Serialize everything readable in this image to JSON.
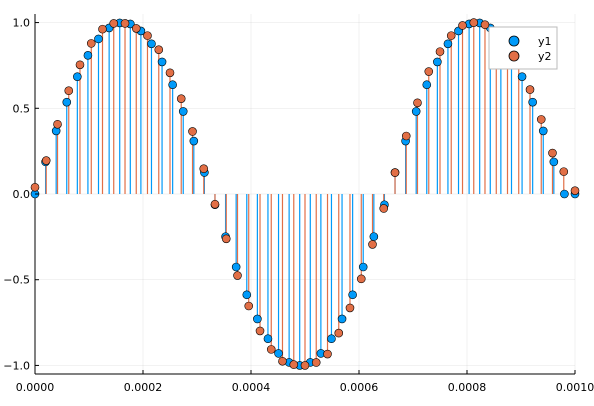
{
  "chart_data": {
    "type": "scatter",
    "title": "",
    "xlabel": "",
    "ylabel": "",
    "xlim": [
      0,
      0.001
    ],
    "ylim": [
      -1.05,
      1.05
    ],
    "grid": true,
    "legend_position": "top-right",
    "x_ticks": [
      {
        "value": 0,
        "label": "0.0000"
      },
      {
        "value": 0.0002,
        "label": "0.0002"
      },
      {
        "value": 0.0004,
        "label": "0.0004"
      },
      {
        "value": 0.0006,
        "label": "0.0006"
      },
      {
        "value": 0.0008,
        "label": "0.0008"
      },
      {
        "value": 0.001,
        "label": "0.0010"
      }
    ],
    "y_ticks": [
      {
        "value": -1.0,
        "label": "−1.0"
      },
      {
        "value": -0.5,
        "label": "−0.5"
      },
      {
        "value": 0.0,
        "label": "0.0"
      },
      {
        "value": 0.5,
        "label": "0.5"
      },
      {
        "value": 1.0,
        "label": "1.0"
      }
    ],
    "series": [
      {
        "name": "y1",
        "color": "#009af9",
        "x": [
          0,
          1.96e-05,
          3.92e-05,
          5.88e-05,
          7.84e-05,
          9.8e-05,
          0.0001176,
          0.0001373,
          0.0001569,
          0.0001765,
          0.0001961,
          0.0002157,
          0.0002353,
          0.0002549,
          0.0002745,
          0.0002941,
          0.0003137,
          0.0003333,
          0.0003529,
          0.0003725,
          0.0003922,
          0.0004118,
          0.0004314,
          0.000451,
          0.0004706,
          0.0004902,
          0.0005098,
          0.0005294,
          0.000549,
          0.0005686,
          0.0005882,
          0.0006078,
          0.0006275,
          0.0006471,
          0.0006667,
          0.0006863,
          0.0007059,
          0.0007255,
          0.0007451,
          0.0007647,
          0.0007843,
          0.0008039,
          0.0008235,
          0.0008431,
          0.0008627,
          0.0008824,
          0.000902,
          0.0009216,
          0.0009412,
          0.0009608,
          0.0009804,
          0.001
        ],
        "y": [
          0.0,
          0.1874,
          0.3681,
          0.5358,
          0.6845,
          0.809,
          0.9048,
          0.9686,
          0.998,
          0.9921,
          0.9511,
          0.8763,
          0.7705,
          0.6374,
          0.4818,
          0.309,
          0.1253,
          -0.0627,
          -0.2487,
          -0.4258,
          -0.5878,
          -0.729,
          -0.8443,
          -0.9298,
          -0.9823,
          -0.9999,
          -0.9823,
          -0.9298,
          -0.8443,
          -0.729,
          -0.5878,
          -0.4258,
          -0.2487,
          -0.0627,
          0.1253,
          0.309,
          0.4818,
          0.6374,
          0.7705,
          0.8763,
          0.9511,
          0.9921,
          0.998,
          0.9686,
          0.9048,
          0.809,
          0.6845,
          0.5358,
          0.3681,
          0.1874,
          0.0,
          0.0
        ]
      },
      {
        "name": "y2",
        "color": "#e26f46",
        "x": [
          0,
          2.08e-05,
          4.17e-05,
          6.25e-05,
          8.33e-05,
          0.0001042,
          0.000125,
          0.0001458,
          0.0001667,
          0.0001875,
          0.0002083,
          0.0002292,
          0.00025,
          0.0002708,
          0.0002917,
          0.0003125,
          0.0003333,
          0.0003542,
          0.000375,
          0.0003958,
          0.0004167,
          0.0004375,
          0.0004583,
          0.0004792,
          0.0005,
          0.0005208,
          0.0005417,
          0.0005625,
          0.0005833,
          0.0006042,
          0.000625,
          0.0006458,
          0.0006667,
          0.0006875,
          0.0007083,
          0.0007292,
          0.00075,
          0.0007708,
          0.0007917,
          0.0008125,
          0.0008333,
          0.0008542,
          0.000875,
          0.0008958,
          0.0009167,
          0.0009375,
          0.0009583,
          0.0009792,
          0.001
        ],
        "y": [
          0.0393,
          0.1951,
          0.4067,
          0.6025,
          0.7537,
          0.8787,
          0.9617,
          0.9952,
          0.9952,
          0.9659,
          0.9239,
          0.8416,
          0.7071,
          0.556,
          0.3648,
          0.1476,
          -0.0597,
          -0.2613,
          -0.4756,
          -0.6534,
          -0.7986,
          -0.9063,
          -0.9757,
          -0.9952,
          -1.0,
          -0.9828,
          -0.9336,
          -0.8113,
          -0.6645,
          -0.495,
          -0.294,
          -0.0843,
          0.1249,
          0.3383,
          0.532,
          0.7144,
          0.8305,
          0.9239,
          0.983,
          1.0,
          0.9876,
          0.9473,
          0.8712,
          0.7594,
          0.6091,
          0.4353,
          0.2389,
          0.1305,
          0.0193
        ]
      }
    ]
  }
}
